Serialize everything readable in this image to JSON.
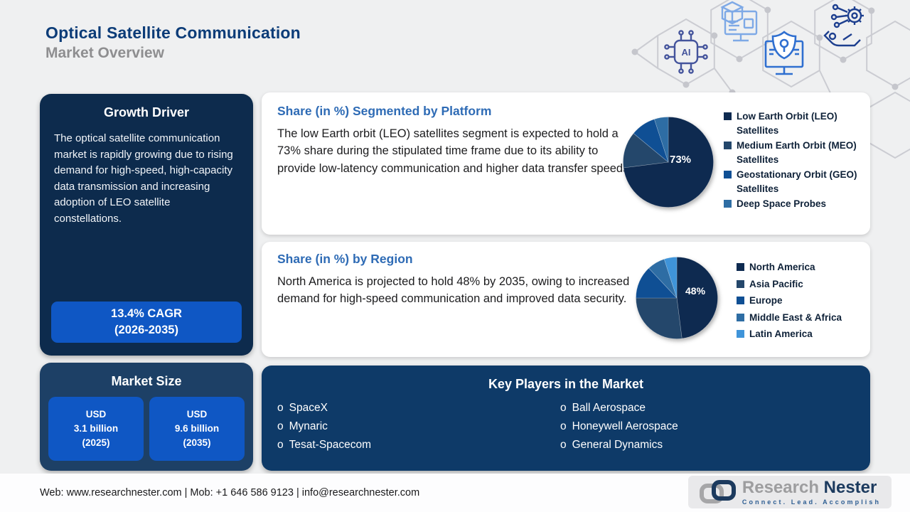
{
  "header": {
    "title": "Optical Satellite Communication",
    "subtitle": "Market Overview",
    "decoration_icons": [
      "ai-chip-icon",
      "cubes-monitor-icon",
      "secure-monitor-icon",
      "robotic-hand-gear-icon"
    ]
  },
  "growth_driver": {
    "title": "Growth Driver",
    "body": "The optical satellite communication market is rapidly growing due to rising demand for high-speed, high-capacity data transmission and increasing adoption of LEO satellite constellations.",
    "cagr_line1": "13.4% CAGR",
    "cagr_line2": "(2026-2035)"
  },
  "market_size": {
    "title": "Market Size",
    "boxes": [
      {
        "line1": "USD",
        "line2": "3.1 billion",
        "line3": "(2025)"
      },
      {
        "line1": "USD",
        "line2": "9.6 billion",
        "line3": "(2035)"
      }
    ]
  },
  "platform_panel": {
    "title": "Share (in %) Segmented by Platform",
    "body": "The low Earth orbit (LEO) satellites segment is expected to hold a 73% share during the stipulated time frame due to its ability to provide low-latency communication and higher data transfer speeds.",
    "pie_label": "73%"
  },
  "region_panel": {
    "title": "Share (in %) by Region",
    "body": "North America is projected to hold 48% by 2035, owing to increased demand for high-speed communication and improved data security.",
    "pie_label": "48%"
  },
  "key_players": {
    "title": "Key Players in the Market",
    "left": [
      "SpaceX",
      "Mynaric",
      "Tesat-Spacecom"
    ],
    "right": [
      "Ball Aerospace",
      "Honeywell Aerospace",
      "General Dynamics"
    ]
  },
  "footer": {
    "contact": "Web: www.researchnester.com  | Mob: +1 646 586 9123 | info@researchnester.com",
    "logo": {
      "word1": "Research",
      "word2": "Nester",
      "tagline": "Connect. Lead. Accomplish"
    }
  },
  "colors": {
    "page_bg": "#eff0f1",
    "dark_panel": "#0d2b4d",
    "market_panel": "#1d4066",
    "key_players_panel": "#0e3a68",
    "accent_button_blue": "#0f57c4",
    "heading_blue": "#2e6bb5",
    "title_navy": "#0c3c78",
    "subtitle_gray": "#8e8e90"
  },
  "chart_data": [
    {
      "type": "pie",
      "title": "Share (in %) Segmented by Platform",
      "labels": [
        "Low Earth Orbit (LEO) Satellites",
        "Medium Earth Orbit (MEO) Satellites",
        "Geostationary Orbit (GEO) Satellites",
        "Deep Space Probes"
      ],
      "values": [
        73,
        13,
        9,
        5
      ],
      "colors": [
        "#0e2a50",
        "#24476b",
        "#0f4f94",
        "#2e6da4"
      ],
      "data_label": "73%",
      "start_angle_deg": 0,
      "direction": "clockwise",
      "legend_position": "right"
    },
    {
      "type": "pie",
      "title": "Share (in %) by Region",
      "labels": [
        "North America",
        "Asia Pacific",
        "Europe",
        "Middle East & Africa",
        "Latin America"
      ],
      "values": [
        48,
        27,
        13,
        7,
        5
      ],
      "colors": [
        "#0e2a50",
        "#24476b",
        "#0f4f94",
        "#2e6da4",
        "#3f94d9"
      ],
      "data_label": "48%",
      "start_angle_deg": 0,
      "direction": "clockwise",
      "legend_position": "right"
    }
  ]
}
